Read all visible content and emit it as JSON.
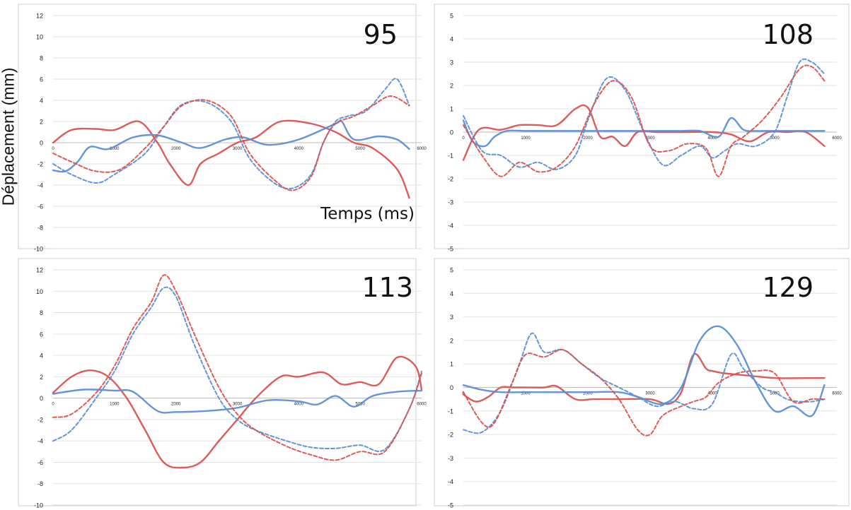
{
  "figure": {
    "ylabel": "Déplacement (mm)",
    "xlabel": "Temps (ms)"
  },
  "colors": {
    "red": "#d9534f",
    "blue": "#5b8fd6",
    "grid": "#e2e2e2",
    "panel_border": "#cfcfcf"
  },
  "chart_data": [
    {
      "type": "line",
      "title": "95",
      "xlabel": "Temps (ms)",
      "ylabel": "Déplacement (mm)",
      "xlim": [
        0,
        6000
      ],
      "ylim": [
        -10,
        12
      ],
      "xticks": [
        0,
        1000,
        2000,
        3000,
        4000,
        5000,
        6000
      ],
      "xtick_labels": [
        "0",
        "1000",
        "2000",
        "3000",
        "4000",
        "5000",
        "6000"
      ],
      "yticks": [
        -10,
        -8,
        -6,
        -4,
        -2,
        0,
        2,
        4,
        6,
        8,
        10,
        12
      ],
      "ytick_labels": [
        "-10",
        "-8",
        "-6",
        "-4",
        "-2",
        "0",
        "2",
        "4",
        "6",
        "8",
        "10",
        "12"
      ],
      "grid": true,
      "series": [
        {
          "color": "#d9534f",
          "style": "solid",
          "x": [
            0,
            300,
            700,
            1000,
            1400,
            1700,
            1900,
            2200,
            2400,
            2700,
            3000,
            3300,
            3700,
            4200,
            4600,
            4900,
            5200,
            5600,
            5800
          ],
          "y": [
            0,
            1.2,
            1.3,
            1.2,
            2,
            0,
            -2,
            -4,
            -2,
            -1,
            0,
            0.5,
            2,
            1.8,
            1,
            0,
            -0.5,
            -2.5,
            -5.2
          ]
        },
        {
          "color": "#5b8fd6",
          "style": "solid",
          "x": [
            0,
            200,
            400,
            600,
            900,
            1300,
            1700,
            2100,
            2400,
            2800,
            3100,
            3500,
            4000,
            4600,
            4700,
            4900,
            5300,
            5600,
            5800
          ],
          "y": [
            -2.6,
            -2.7,
            -1.8,
            -0.4,
            -0.6,
            0.5,
            0.7,
            0,
            -0.5,
            0.3,
            0.5,
            -0.2,
            0.3,
            1.8,
            2,
            0.3,
            0.6,
            0.3,
            -0.6
          ]
        },
        {
          "color": "#5b8fd6",
          "style": "dashed",
          "x": [
            0,
            300,
            700,
            1000,
            1500,
            1800,
            2100,
            2500,
            2900,
            3200,
            3600,
            3900,
            4200,
            4400,
            4600,
            4800,
            5100,
            5400,
            5600,
            5800
          ],
          "y": [
            -2,
            -3,
            -3.8,
            -3,
            -1,
            1.5,
            3.6,
            3.8,
            2,
            -1.5,
            -3.8,
            -4.3,
            -3,
            0,
            2,
            2.5,
            3,
            5,
            6,
            3.5
          ]
        },
        {
          "color": "#d9534f",
          "style": "dashed",
          "x": [
            0,
            300,
            700,
            1100,
            1500,
            1800,
            2100,
            2500,
            2900,
            3200,
            3600,
            3900,
            4200,
            4400,
            4600,
            4900,
            5200,
            5500,
            5800
          ],
          "y": [
            -1,
            -1.8,
            -2.7,
            -2.5,
            -0.5,
            1.5,
            3.5,
            4,
            2.5,
            -1,
            -3.5,
            -4.5,
            -3.2,
            0,
            1.8,
            2.5,
            3.5,
            4.4,
            3.5
          ]
        }
      ]
    },
    {
      "type": "line",
      "title": "108",
      "xlim": [
        0,
        6000
      ],
      "ylim": [
        -5,
        5
      ],
      "xticks": [
        0,
        1000,
        2000,
        3000,
        4000,
        5000,
        6000
      ],
      "xtick_labels": [
        "0",
        "1000",
        "2000",
        "3000",
        "4000",
        "5000",
        "6000"
      ],
      "yticks": [
        -5,
        -4,
        -3,
        -2,
        -1,
        0,
        1,
        2,
        3,
        4,
        5
      ],
      "ytick_labels": [
        "-5",
        "-4",
        "-3",
        "-2",
        "-1",
        "0",
        "1",
        "2",
        "3",
        "4",
        "5"
      ],
      "grid": true,
      "series": [
        {
          "color": "#d9534f",
          "style": "solid",
          "x": [
            0,
            250,
            600,
            900,
            1200,
            1500,
            1800,
            2000,
            2200,
            2400,
            2600,
            2800,
            3100,
            3500,
            4000,
            4300,
            4600,
            4900,
            5200,
            5500,
            5800
          ],
          "y": [
            -1.2,
            0.1,
            0.1,
            0.3,
            0.3,
            0.3,
            1,
            1.05,
            -0.2,
            -0.2,
            -0.6,
            0,
            0,
            0,
            0,
            -0.1,
            -0.4,
            0,
            0,
            0,
            -0.6
          ]
        },
        {
          "color": "#5b8fd6",
          "style": "solid",
          "x": [
            0,
            150,
            350,
            500,
            700,
            1000,
            1500,
            2000,
            2500,
            3000,
            3500,
            3800,
            4100,
            4300,
            4500,
            4700,
            4900,
            5200,
            5500,
            5800
          ],
          "y": [
            0.5,
            -0.4,
            -0.6,
            -0.2,
            0.05,
            0.05,
            0.05,
            0.05,
            0.05,
            0.05,
            0.05,
            0.05,
            -0.2,
            0.6,
            0.1,
            0.05,
            0.05,
            0.05,
            0.05,
            0.05
          ]
        },
        {
          "color": "#5b8fd6",
          "style": "dashed",
          "x": [
            0,
            300,
            600,
            900,
            1200,
            1500,
            1800,
            2000,
            2300,
            2600,
            2900,
            3200,
            3500,
            3800,
            4000,
            4200,
            4400,
            4700,
            5000,
            5200,
            5400,
            5600,
            5800
          ],
          "y": [
            0.7,
            -0.8,
            -1,
            -1.5,
            -1.3,
            -1.6,
            -1,
            0.5,
            2.3,
            1.8,
            0,
            -1.4,
            -1,
            -0.6,
            -1.1,
            -0.8,
            -0.5,
            -0.6,
            0,
            1.5,
            3,
            3,
            2.5
          ]
        },
        {
          "color": "#d9534f",
          "style": "dashed",
          "x": [
            0,
            300,
            600,
            900,
            1200,
            1500,
            1800,
            2100,
            2400,
            2700,
            3000,
            3300,
            3600,
            3900,
            4100,
            4300,
            4500,
            4800,
            5100,
            5400,
            5600,
            5800
          ],
          "y": [
            0.3,
            -1,
            -1.9,
            -1.3,
            -1.7,
            -1.5,
            -0.6,
            1.2,
            2.2,
            1.5,
            -0.6,
            -0.8,
            -0.5,
            -0.7,
            -1.9,
            -0.6,
            -0.2,
            0.5,
            1.5,
            2.7,
            2.8,
            2.2
          ]
        }
      ]
    },
    {
      "type": "line",
      "title": "113",
      "xlim": [
        0,
        6000
      ],
      "ylim": [
        -10,
        12
      ],
      "xticks": [
        0,
        1000,
        2000,
        3000,
        4000,
        5000,
        6000
      ],
      "xtick_labels": [
        "0",
        "1000",
        "2000",
        "3000",
        "4000",
        "5000",
        "6000"
      ],
      "yticks": [
        -10,
        -8,
        -6,
        -4,
        -2,
        0,
        2,
        4,
        6,
        8,
        10,
        12
      ],
      "ytick_labels": [
        "-10",
        "-8",
        "-6",
        "-4",
        "-2",
        "0",
        "2",
        "4",
        "6",
        "8",
        "10",
        "12"
      ],
      "grid": true,
      "series": [
        {
          "color": "#d9534f",
          "style": "solid",
          "x": [
            0,
            300,
            600,
            900,
            1200,
            1500,
            1800,
            2100,
            2400,
            2700,
            3000,
            3300,
            3700,
            4000,
            4400,
            4700,
            5000,
            5300,
            5600,
            5900,
            6000
          ],
          "y": [
            0.5,
            2,
            2.6,
            2,
            0,
            -3,
            -6,
            -6.5,
            -6,
            -4,
            -2,
            0,
            2,
            2,
            2.4,
            1.3,
            1.5,
            1.3,
            3.8,
            3,
            0.8
          ]
        },
        {
          "color": "#5b8fd6",
          "style": "solid",
          "x": [
            0,
            500,
            1000,
            1300,
            1700,
            2000,
            2500,
            3000,
            3500,
            4000,
            4300,
            4600,
            4900,
            5200,
            5600,
            6000
          ],
          "y": [
            0.4,
            0.8,
            0.7,
            0.6,
            -1.2,
            -1.3,
            -1.2,
            -0.9,
            -0.2,
            -0.3,
            -0.6,
            0.2,
            -0.8,
            0.2,
            0.6,
            0.7
          ]
        },
        {
          "color": "#5b8fd6",
          "style": "dashed",
          "x": [
            0,
            300,
            700,
            1000,
            1300,
            1600,
            1800,
            2000,
            2300,
            2700,
            3000,
            3300,
            3800,
            4200,
            4600,
            5000,
            5400,
            5800,
            6000
          ],
          "y": [
            -4,
            -3,
            0,
            2.5,
            6,
            8.5,
            10.3,
            9.5,
            5,
            0,
            -2,
            -3,
            -4,
            -4.6,
            -4.7,
            -4.4,
            -4.8,
            -1,
            2.5
          ]
        },
        {
          "color": "#d9534f",
          "style": "dashed",
          "x": [
            0,
            300,
            700,
            1000,
            1300,
            1600,
            1800,
            2000,
            2300,
            2700,
            3000,
            3300,
            3800,
            4200,
            4600,
            5000,
            5400,
            5800,
            6000
          ],
          "y": [
            -1.8,
            -1.5,
            0.5,
            3,
            6.5,
            9,
            11.5,
            10,
            6,
            1,
            -1.5,
            -3,
            -4.5,
            -5.3,
            -5.8,
            -5,
            -5,
            -1,
            2.3
          ]
        }
      ]
    },
    {
      "type": "line",
      "title": "129",
      "xlim": [
        0,
        6000
      ],
      "ylim": [
        -5,
        5
      ],
      "xticks": [
        0,
        1000,
        2000,
        3000,
        4000,
        5000,
        6000
      ],
      "xtick_labels": [
        "0",
        "1000",
        "2000",
        "3000",
        "4000",
        "5000",
        "6000"
      ],
      "yticks": [
        -5,
        -4,
        -3,
        -2,
        -1,
        0,
        1,
        2,
        3,
        4,
        5
      ],
      "ytick_labels": [
        "-5",
        "-4",
        "-3",
        "-2",
        "-1",
        "0",
        "1",
        "2",
        "3",
        "4",
        "5"
      ],
      "grid": true,
      "series": [
        {
          "color": "#d9534f",
          "style": "solid",
          "x": [
            0,
            200,
            400,
            600,
            800,
            1000,
            1300,
            1500,
            1800,
            2100,
            2500,
            3000,
            3300,
            3500,
            3700,
            3900,
            4000,
            4200,
            4600,
            5000,
            5500,
            5800
          ],
          "y": [
            -0.3,
            -0.6,
            -0.4,
            0,
            0,
            0,
            0,
            0.05,
            -0.5,
            -0.5,
            -0.5,
            -0.5,
            -0.7,
            -0.2,
            1.4,
            0.8,
            0.7,
            0.6,
            0.5,
            0.4,
            0.4,
            0.4
          ]
        },
        {
          "color": "#5b8fd6",
          "style": "solid",
          "x": [
            0,
            300,
            600,
            1000,
            1500,
            2000,
            2500,
            2800,
            3200,
            3500,
            3800,
            4100,
            4400,
            4700,
            5000,
            5300,
            5600,
            5800
          ],
          "y": [
            0.1,
            -0.1,
            -0.2,
            -0.2,
            -0.2,
            -0.2,
            -0.2,
            -0.4,
            -0.7,
            0,
            2,
            2.6,
            1.8,
            0.2,
            -1,
            -0.8,
            -1.2,
            0.1
          ]
        },
        {
          "color": "#5b8fd6",
          "style": "dashed",
          "x": [
            0,
            300,
            600,
            900,
            1100,
            1300,
            1600,
            1900,
            2200,
            2500,
            2800,
            3100,
            3400,
            3700,
            4000,
            4300,
            4500,
            4800,
            5000,
            5200,
            5400,
            5600,
            5800
          ],
          "y": [
            -1.8,
            -1.9,
            -1,
            1,
            2.3,
            1.5,
            1.6,
            1,
            0.4,
            0,
            -0.4,
            -0.8,
            -0.6,
            -0.9,
            -0.7,
            1.4,
            0.8,
            0,
            -0.2,
            -0.5,
            -0.6,
            -0.6,
            -0.5
          ]
        },
        {
          "color": "#d9534f",
          "style": "dashed",
          "x": [
            0,
            300,
            500,
            800,
            1000,
            1300,
            1600,
            1900,
            2200,
            2500,
            2800,
            3000,
            3200,
            3500,
            3700,
            3900,
            4100,
            4400,
            4700,
            5000,
            5300,
            5600,
            5800
          ],
          "y": [
            -0.2,
            -1.5,
            -1.5,
            0.3,
            1.4,
            1.3,
            1.6,
            1,
            0.4,
            -0.5,
            -1.8,
            -2,
            -1.2,
            -0.8,
            -0.6,
            -0.4,
            0.2,
            0.6,
            0.7,
            0.6,
            -0.6,
            -0.5,
            -0.5
          ]
        }
      ]
    }
  ]
}
